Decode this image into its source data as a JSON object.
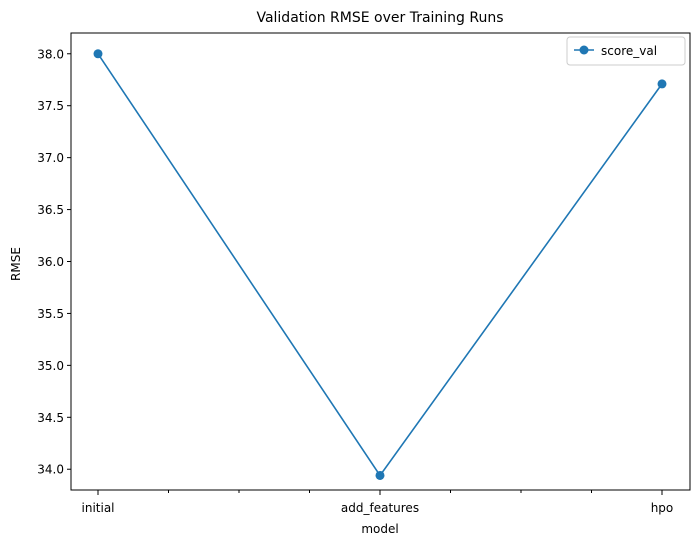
{
  "chart_data": {
    "type": "line",
    "title": "Validation RMSE over Training Runs",
    "xlabel": "model",
    "ylabel": "RMSE",
    "categories": [
      "initial",
      "add_features",
      "hpo"
    ],
    "x_minor_ticks": 8,
    "series": [
      {
        "name": "score_val",
        "values": [
          38.0,
          33.94,
          37.71
        ]
      }
    ],
    "ylim": [
      33.8,
      38.2
    ],
    "yticks": [
      34.0,
      34.5,
      35.0,
      35.5,
      36.0,
      36.5,
      37.0,
      37.5,
      38.0
    ],
    "ytick_labels": [
      "34.0",
      "34.5",
      "35.0",
      "35.5",
      "36.0",
      "36.5",
      "37.0",
      "37.5",
      "38.0"
    ],
    "grid": false,
    "legend": "top-right",
    "colors": {
      "series": "#1f77b4",
      "axes": "#000000"
    }
  }
}
